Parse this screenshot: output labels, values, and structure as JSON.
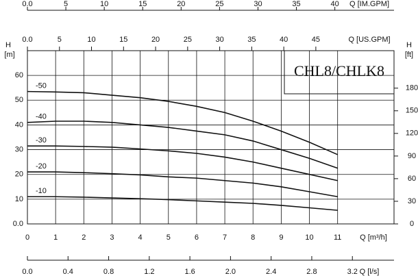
{
  "chart_data": {
    "type": "line",
    "title": "CHL8/CHLK8",
    "x_label": "Q [m³/h]",
    "y_label": "H",
    "y_unit": "[m]",
    "y2_label": "H",
    "y2_unit": "[ft]",
    "x": [
      0,
      1,
      2,
      3,
      4,
      5,
      6,
      7,
      8,
      9,
      10,
      11
    ],
    "xlim": [
      0,
      13
    ],
    "xticks": [
      0,
      1,
      2,
      3,
      4,
      5,
      6,
      7,
      8,
      9,
      10,
      11
    ],
    "ylim": [
      0,
      70
    ],
    "yticks": [
      {
        "value": 0,
        "label": "0.0"
      },
      10,
      20,
      30,
      40,
      50,
      60
    ],
    "y2lim": [
      0,
      229.7
    ],
    "y2ticks": [
      0,
      30,
      60,
      90,
      120,
      150,
      180
    ],
    "grid": true,
    "color": "#111111",
    "series": [
      {
        "name": "-50",
        "values": [
          53.5,
          53.3,
          53,
          52,
          51,
          49.5,
          47.5,
          45,
          41.5,
          37.5,
          33,
          28
        ]
      },
      {
        "name": "-40",
        "values": [
          41,
          41.5,
          41.5,
          41,
          40,
          39,
          37.5,
          36,
          33.5,
          30,
          26.5,
          22.5
        ]
      },
      {
        "name": "-30",
        "values": [
          31.5,
          31.5,
          31.3,
          31,
          30.3,
          29.5,
          28.5,
          27,
          25,
          22.5,
          20,
          17.5
        ]
      },
      {
        "name": "-20",
        "values": [
          21,
          21,
          20.7,
          20.3,
          19.8,
          19,
          18.5,
          17.5,
          16.5,
          15,
          13,
          11
        ]
      },
      {
        "name": "-10",
        "values": [
          11,
          11,
          10.8,
          10.5,
          10.2,
          9.8,
          9.3,
          8.8,
          8.3,
          7.5,
          6.5,
          5.5
        ]
      }
    ],
    "secondary_x_axes": [
      {
        "label": "Q [IM.GPM]",
        "position": "top",
        "xlim": [
          0,
          47.7
        ],
        "xticks": [
          {
            "value": 0,
            "label": "0.0"
          },
          5,
          10,
          15,
          20,
          25,
          30,
          35,
          40
        ]
      },
      {
        "label": "Q [US.GPM]",
        "position": "frame-top",
        "xlim": [
          0,
          57.2
        ],
        "xticks": [
          {
            "value": 0,
            "label": "0.0"
          },
          5,
          10,
          15,
          20,
          25,
          30,
          35,
          40,
          45
        ]
      },
      {
        "label": "Q [l/s]",
        "position": "bottom",
        "xlim": [
          0,
          3.61
        ],
        "xticks": [
          {
            "value": 0,
            "label": "0.0"
          },
          0.4,
          0.8,
          1.2,
          1.6,
          {
            "value": 2,
            "label": "2.0"
          },
          2.4,
          2.8,
          3.2
        ]
      }
    ]
  }
}
